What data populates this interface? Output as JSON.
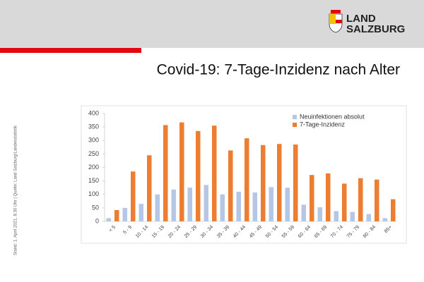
{
  "header": {
    "logo_line1": "LAND",
    "logo_line2": "SALZBURG"
  },
  "side_note": "Stand: 1. April  2021, 8.30 Uhr  |  Quelle: Land Salzburg/Landesstatistik",
  "chart_data": {
    "type": "bar",
    "title": "Covid-19: 7-Tage-Inzidenz nach Alter",
    "categories": [
      "< 5",
      "5 - 9",
      "10 - 14",
      "15 - 19",
      "20 - 24",
      "25 - 29",
      "30 - 34",
      "35 - 39",
      "40 - 44",
      "45 - 49",
      "50 - 54",
      "55 - 59",
      "60 - 64",
      "65 - 69",
      "70 - 74",
      "75 - 79",
      "80 - 84",
      "85+"
    ],
    "series": [
      {
        "name": "Neuinfektionen absolut",
        "color": "#b4c7e7",
        "values": [
          12,
          50,
          65,
          100,
          118,
          125,
          135,
          100,
          110,
          107,
          127,
          125,
          62,
          52,
          38,
          35,
          27,
          12
        ]
      },
      {
        "name": "7-Tage-Inzidenz",
        "color": "#ed7d31",
        "values": [
          42,
          185,
          245,
          357,
          367,
          335,
          355,
          263,
          308,
          283,
          287,
          285,
          172,
          178,
          140,
          160,
          155,
          82
        ]
      }
    ],
    "ylim": [
      0,
      400
    ],
    "yticks": [
      0,
      50,
      100,
      150,
      200,
      250,
      300,
      350,
      400
    ],
    "legend": "top-right"
  }
}
